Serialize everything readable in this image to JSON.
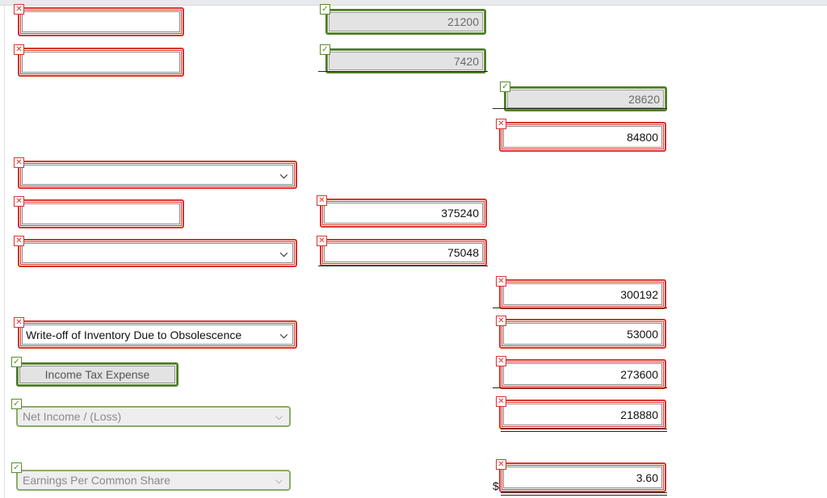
{
  "rows": {
    "r1": {
      "label_value": "",
      "col1_value": "21200"
    },
    "r2": {
      "label_value": "",
      "col1_value": "7420"
    },
    "r3": {
      "col2_value": "28620"
    },
    "r4": {
      "col2_value": "84800"
    },
    "r5": {
      "label_value": ""
    },
    "r6": {
      "label_value": "",
      "col1_value": "375240"
    },
    "r7": {
      "label_value": "",
      "col1_value": "75048"
    },
    "r8": {
      "col2_value": "300192"
    },
    "r9": {
      "label_value": "Write-off of Inventory Due to Obsolescence",
      "col2_value": "53000"
    },
    "r10": {
      "label_value": "Income Tax Expense",
      "col2_value": "273600"
    },
    "r11": {
      "label_value": "Net Income / (Loss)",
      "col2_value": "218880"
    },
    "r12": {
      "label_value": "Earnings Per Common Share",
      "currency": "$",
      "col2_value": "3.60"
    }
  },
  "badges": {
    "incorrect": "✕",
    "correct": "✓"
  },
  "icons": {
    "select_arrow": "chevron-down-icon",
    "incorrect": "x-icon",
    "correct": "check-icon"
  },
  "colors": {
    "incorrect": "#d9332b",
    "correct": "#4f7a28",
    "disabled_field": "#e3e3e3"
  }
}
